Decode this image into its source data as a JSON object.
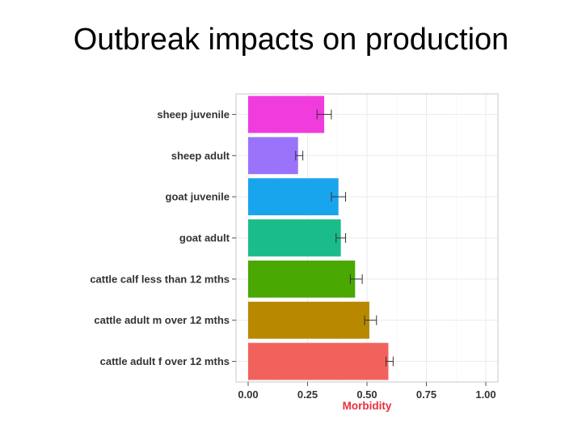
{
  "slide": {
    "title": "Outbreak impacts on production"
  },
  "chart_data": {
    "type": "bar",
    "orientation": "horizontal",
    "title": "",
    "xlabel": "Morbidity",
    "ylabel": "",
    "xlim": [
      0,
      1
    ],
    "x_ticks": [
      0,
      0.25,
      0.5,
      0.75,
      1
    ],
    "x_tick_labels": [
      "0.00",
      "0.25",
      "0.50",
      "0.75",
      "1.00"
    ],
    "grid": true,
    "categories": [
      "sheep juvenile",
      "sheep adult",
      "goat juvenile",
      "goat adult",
      "cattle calf less than 12 mths",
      "cattle adult m over 12 mths",
      "cattle adult f over 12 mths"
    ],
    "values": [
      0.32,
      0.21,
      0.38,
      0.39,
      0.45,
      0.51,
      0.59
    ],
    "error_low": [
      0.29,
      0.2,
      0.35,
      0.37,
      0.43,
      0.49,
      0.58
    ],
    "error_high": [
      0.35,
      0.23,
      0.41,
      0.41,
      0.48,
      0.54,
      0.61
    ],
    "colors": [
      "#F03CDC",
      "#9B73FB",
      "#19A5EE",
      "#1ABC8A",
      "#49A801",
      "#B78800",
      "#F2625D"
    ],
    "xlabel_color": "#E8303C",
    "panel_background": "#FFFFFF",
    "grid_color": "#EBEBEB"
  }
}
